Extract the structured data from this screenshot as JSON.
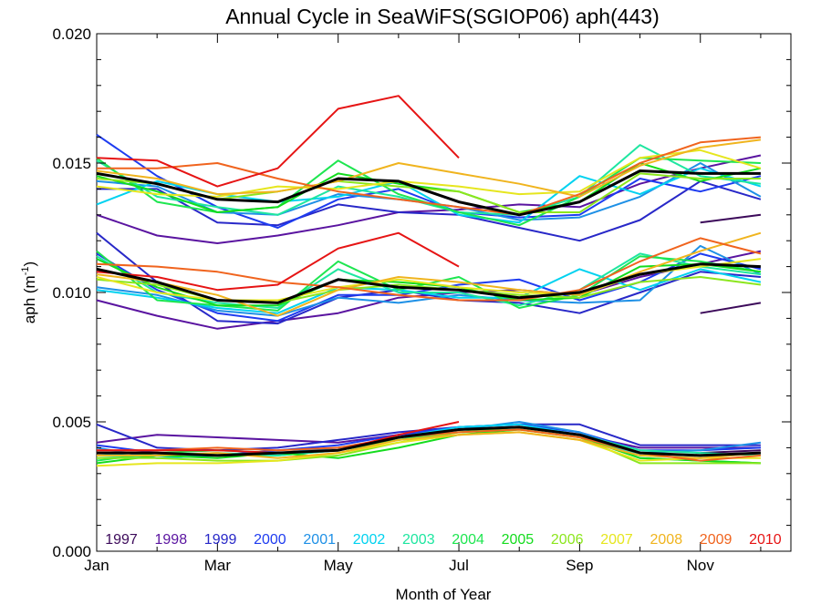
{
  "chart_data": {
    "type": "line",
    "title": "Annual Cycle in SeaWiFS(SGIOP06) aph(443)",
    "xlabel": "Month of Year",
    "ylabel_main": "aph (m",
    "ylabel_exp": "-1",
    "ylabel_close": ")",
    "xlim": [
      1,
      12.5
    ],
    "ylim": [
      0.0,
      0.02
    ],
    "x_ticks": [
      {
        "value": 1,
        "label": "Jan"
      },
      {
        "value": 3,
        "label": "Mar"
      },
      {
        "value": 5,
        "label": "May"
      },
      {
        "value": 7,
        "label": "Jul"
      },
      {
        "value": 9,
        "label": "Sep"
      },
      {
        "value": 11,
        "label": "Nov"
      }
    ],
    "y_ticks": [
      {
        "value": 0.0,
        "label": "0.000"
      },
      {
        "value": 0.005,
        "label": "0.005"
      },
      {
        "value": 0.01,
        "label": "0.010"
      },
      {
        "value": 0.015,
        "label": "0.015"
      },
      {
        "value": 0.02,
        "label": "0.020"
      }
    ],
    "legend_position": "bottom",
    "months": [
      1,
      2,
      3,
      4,
      5,
      6,
      7,
      8,
      9,
      10,
      11,
      12
    ],
    "series": [
      {
        "name": "1997",
        "color": "#3c0a5a",
        "groups": [
          [
            null,
            null,
            null,
            null,
            null,
            null,
            null,
            null,
            null,
            null,
            0.0127,
            0.013
          ],
          [
            null,
            null,
            null,
            null,
            null,
            null,
            null,
            null,
            null,
            null,
            0.0092,
            0.0096
          ],
          [
            null,
            null,
            null,
            null,
            null,
            null,
            null,
            null,
            null,
            null,
            0.0038,
            0.0039
          ]
        ]
      },
      {
        "name": "1998",
        "color": "#5a14a0",
        "groups": [
          [
            0.013,
            0.0122,
            0.0119,
            0.0122,
            0.0126,
            0.0131,
            0.0132,
            0.0134,
            0.0133,
            0.0142,
            0.0148,
            0.0153
          ],
          [
            0.0097,
            0.0091,
            0.0086,
            0.0089,
            0.0092,
            0.0098,
            0.01,
            0.0101,
            0.0099,
            0.0106,
            0.0111,
            0.0116
          ],
          [
            0.0042,
            0.0045,
            0.0044,
            0.0043,
            0.0042,
            0.0045,
            0.0047,
            0.0048,
            0.0045,
            0.004,
            0.004,
            0.004
          ]
        ]
      },
      {
        "name": "1999",
        "color": "#2828c8",
        "groups": [
          [
            0.014,
            0.014,
            0.0127,
            0.0126,
            0.0134,
            0.0131,
            0.013,
            0.0125,
            0.012,
            0.0128,
            0.0143,
            0.0136
          ],
          [
            0.0123,
            0.0104,
            0.0089,
            0.0088,
            0.0098,
            0.0101,
            0.0097,
            0.0096,
            0.0092,
            0.01,
            0.0108,
            0.0106
          ],
          [
            0.0049,
            0.004,
            0.0039,
            0.004,
            0.0043,
            0.0046,
            0.0048,
            0.0049,
            0.0049,
            0.0041,
            0.0041,
            0.0041
          ]
        ]
      },
      {
        "name": "2000",
        "color": "#1e3cf0",
        "groups": [
          [
            0.0161,
            0.0145,
            0.0133,
            0.0125,
            0.0136,
            0.014,
            0.0131,
            0.0129,
            0.013,
            0.0144,
            0.0139,
            0.0145
          ],
          [
            0.0115,
            0.0101,
            0.0092,
            0.0089,
            0.0099,
            0.0099,
            0.0103,
            0.0105,
            0.0097,
            0.0104,
            0.0115,
            0.0109
          ],
          [
            0.0041,
            0.0038,
            0.0037,
            0.0039,
            0.0041,
            0.0045,
            0.0048,
            0.0049,
            0.0046,
            0.0039,
            0.0039,
            0.004
          ]
        ]
      },
      {
        "name": "2001",
        "color": "#1e90e6",
        "groups": [
          [
            0.0143,
            0.0141,
            0.0131,
            0.013,
            0.0138,
            0.0136,
            0.0133,
            0.0128,
            0.0129,
            0.0137,
            0.015,
            0.0137
          ],
          [
            0.0102,
            0.0099,
            0.0093,
            0.0091,
            0.0098,
            0.0096,
            0.0099,
            0.0097,
            0.0096,
            0.0097,
            0.0118,
            0.0107
          ],
          [
            0.004,
            0.0036,
            0.0037,
            0.0038,
            0.004,
            0.0044,
            0.0047,
            0.005,
            0.0046,
            0.0038,
            0.0039,
            0.0042
          ]
        ]
      },
      {
        "name": "2002",
        "color": "#00d2f0",
        "groups": [
          [
            0.0134,
            0.0143,
            0.0138,
            0.0135,
            0.0137,
            0.0143,
            0.013,
            0.0127,
            0.0145,
            0.0138,
            0.0148,
            0.0141
          ],
          [
            0.0101,
            0.0098,
            0.0094,
            0.0092,
            0.0102,
            0.0101,
            0.0098,
            0.0098,
            0.0109,
            0.0101,
            0.0109,
            0.0104
          ],
          [
            0.0038,
            0.0036,
            0.0037,
            0.0037,
            0.0039,
            0.0044,
            0.0048,
            0.0049,
            0.0045,
            0.0037,
            0.0036,
            0.0038
          ]
        ]
      },
      {
        "name": "2003",
        "color": "#1ee6a0",
        "groups": [
          [
            0.0151,
            0.0137,
            0.0133,
            0.013,
            0.0141,
            0.0137,
            0.0131,
            0.013,
            0.0137,
            0.0157,
            0.0145,
            0.0142
          ],
          [
            0.0114,
            0.01,
            0.0096,
            0.0094,
            0.0109,
            0.01,
            0.01,
            0.0095,
            0.0101,
            0.0115,
            0.011,
            0.0107
          ],
          [
            0.0036,
            0.0037,
            0.0038,
            0.0037,
            0.0039,
            0.0043,
            0.0047,
            0.0048,
            0.0045,
            0.0039,
            0.0038,
            0.0037
          ]
        ]
      },
      {
        "name": "2004",
        "color": "#1ee650",
        "groups": [
          [
            0.0152,
            0.0135,
            0.0131,
            0.0133,
            0.0151,
            0.0138,
            0.0131,
            0.0126,
            0.0137,
            0.0152,
            0.0151,
            0.015
          ],
          [
            0.0116,
            0.0097,
            0.0095,
            0.0093,
            0.0112,
            0.0101,
            0.0106,
            0.0094,
            0.0099,
            0.0114,
            0.0112,
            0.0108
          ],
          [
            0.0035,
            0.0038,
            0.0039,
            0.0038,
            0.0039,
            0.0043,
            0.0046,
            0.0048,
            0.0045,
            0.0036,
            0.0035,
            0.0034
          ]
        ]
      },
      {
        "name": "2005",
        "color": "#14dc1e",
        "groups": [
          [
            0.0145,
            0.0139,
            0.0131,
            0.0133,
            0.0146,
            0.0142,
            0.0139,
            0.0131,
            0.0135,
            0.015,
            0.0143,
            0.0148
          ],
          [
            0.0113,
            0.0102,
            0.0095,
            0.0095,
            0.0105,
            0.0104,
            0.0102,
            0.0097,
            0.0098,
            0.011,
            0.0111,
            0.0108
          ],
          [
            0.0034,
            0.0037,
            0.0036,
            0.0038,
            0.0036,
            0.004,
            0.0045,
            0.0047,
            0.0044,
            0.0036,
            0.0035,
            0.0034
          ]
        ]
      },
      {
        "name": "2006",
        "color": "#8ce61e",
        "groups": [
          [
            0.0144,
            0.0142,
            0.0136,
            0.0139,
            0.0143,
            0.0141,
            0.0139,
            0.0131,
            0.0131,
            0.0146,
            0.0144,
            0.0144
          ],
          [
            0.0105,
            0.0103,
            0.0097,
            0.0096,
            0.0101,
            0.0103,
            0.0101,
            0.0099,
            0.0098,
            0.0104,
            0.0106,
            0.0103
          ],
          [
            0.0036,
            0.0036,
            0.0035,
            0.0035,
            0.0037,
            0.0042,
            0.0046,
            0.0047,
            0.0044,
            0.0034,
            0.0034,
            0.0034
          ]
        ]
      },
      {
        "name": "2007",
        "color": "#e6e61e",
        "groups": [
          [
            0.0141,
            0.0138,
            0.0137,
            0.0141,
            0.014,
            0.0143,
            0.0141,
            0.0138,
            0.0139,
            0.0152,
            0.0155,
            0.0148
          ],
          [
            0.0106,
            0.01,
            0.0097,
            0.0097,
            0.0102,
            0.0105,
            0.0102,
            0.01,
            0.0099,
            0.0107,
            0.011,
            0.0113
          ],
          [
            0.0033,
            0.0034,
            0.0034,
            0.0035,
            0.0038,
            0.0042,
            0.0045,
            0.0046,
            0.0043,
            0.0035,
            0.0036,
            0.0036
          ]
        ]
      },
      {
        "name": "2008",
        "color": "#f0b41e",
        "groups": [
          [
            0.0147,
            0.0144,
            0.0138,
            0.0139,
            0.0143,
            0.015,
            0.0146,
            0.0142,
            0.0137,
            0.0149,
            0.0156,
            0.0159
          ],
          [
            0.0107,
            0.0104,
            0.0099,
            0.0091,
            0.0101,
            0.0106,
            0.0104,
            0.0101,
            0.0099,
            0.0108,
            0.0116,
            0.0123
          ],
          [
            0.0037,
            0.0037,
            0.0038,
            0.0036,
            0.0038,
            0.0043,
            0.0045,
            0.0046,
            0.0043,
            0.0037,
            0.0036,
            0.0038
          ]
        ]
      },
      {
        "name": "2009",
        "color": "#f0641e",
        "groups": [
          [
            0.0148,
            0.0148,
            0.015,
            0.0144,
            0.0139,
            0.0136,
            0.0133,
            0.013,
            0.0138,
            0.015,
            0.0158,
            0.016
          ],
          [
            0.0111,
            0.011,
            0.0108,
            0.0104,
            0.0102,
            0.0099,
            0.0097,
            0.0097,
            0.0101,
            0.0112,
            0.0121,
            0.0115
          ],
          [
            0.0039,
            0.0039,
            0.004,
            0.0039,
            0.004,
            0.0044,
            0.0046,
            0.0047,
            0.0044,
            0.0038,
            0.0035,
            0.0037
          ]
        ]
      },
      {
        "name": "2010",
        "color": "#e61414",
        "groups": [
          [
            0.0152,
            0.0151,
            0.0141,
            0.0148,
            0.0171,
            0.0176,
            0.0152,
            null,
            null,
            null,
            null,
            null
          ],
          [
            0.0108,
            0.0106,
            0.0101,
            0.0103,
            0.0117,
            0.0123,
            0.011,
            null,
            null,
            null,
            null,
            null
          ],
          [
            0.0039,
            0.0039,
            0.0039,
            0.0038,
            0.0039,
            0.0045,
            0.005,
            null,
            null,
            null,
            null,
            null
          ]
        ]
      }
    ],
    "mean_groups": [
      [
        0.0146,
        0.0142,
        0.0136,
        0.0135,
        0.0144,
        0.0143,
        0.0135,
        0.013,
        0.0135,
        0.0147,
        0.0146,
        0.0146
      ],
      [
        0.0109,
        0.0104,
        0.0097,
        0.0096,
        0.0105,
        0.0102,
        0.0101,
        0.0098,
        0.01,
        0.0107,
        0.0111,
        0.011
      ],
      [
        0.0038,
        0.0038,
        0.0037,
        0.0038,
        0.0039,
        0.0044,
        0.0047,
        0.0048,
        0.0045,
        0.0038,
        0.0037,
        0.0038
      ]
    ]
  }
}
